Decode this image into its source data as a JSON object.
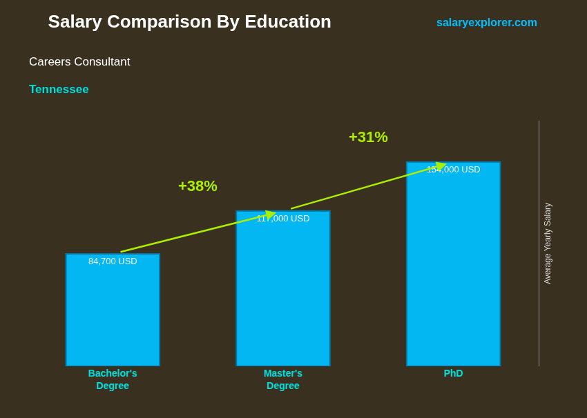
{
  "chart_data": {
    "type": "bar",
    "title": "Salary Comparison By Education",
    "subtitle": "Careers Consultant",
    "ylabel": "Average Yearly Salary",
    "categories": [
      "Bachelor's\nDegree",
      "Master's\nDegree",
      "PhD"
    ],
    "values": [
      84700,
      117000,
      154000
    ],
    "value_labels": [
      "84,700 USD",
      "117,000 USD",
      "154,000 USD"
    ],
    "data_labels": true,
    "color": "#00bfff",
    "ylim": [
      0,
      185000
    ],
    "tick_labels": "x",
    "grid": false,
    "annotations": [
      {
        "text": "Tennessee"
      },
      {
        "text": "salaryexplorer.com"
      },
      {
        "text": "+38%",
        "between": [
          "Bachelor's\nDegree",
          "Master's\nDegree"
        ]
      },
      {
        "text": "+31%",
        "between": [
          "Master's\nDegree",
          "PhD"
        ]
      }
    ]
  }
}
